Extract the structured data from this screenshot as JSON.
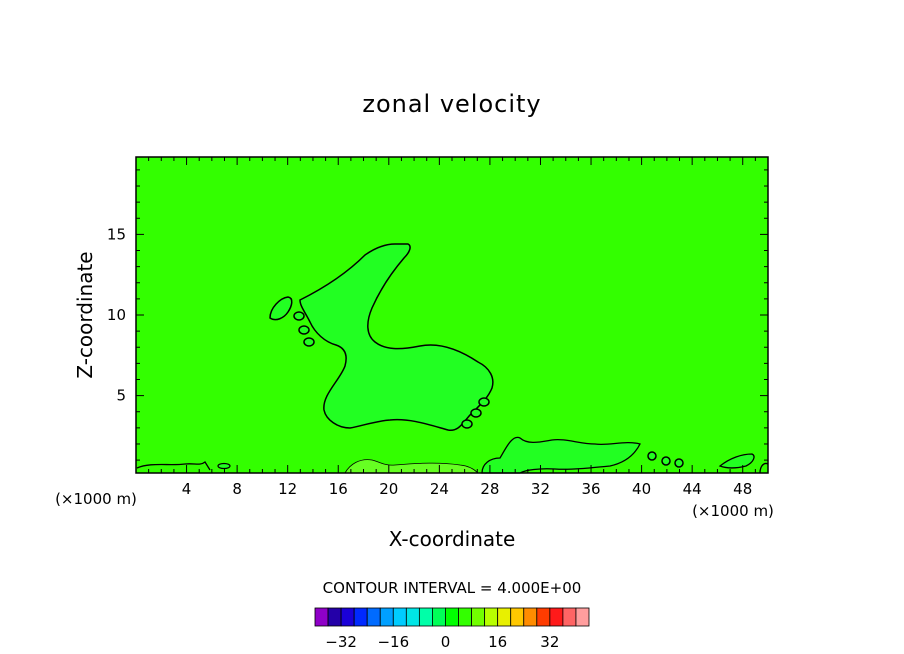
{
  "chart_data": {
    "type": "contour",
    "title": "zonal velocity",
    "xlabel": "X-coordinate",
    "ylabel": "Z-coordinate",
    "x_unit_left": "(×1000 m)",
    "x_unit_right": "(×1000 m)",
    "xlim": [
      0,
      50
    ],
    "ylim": [
      0.2,
      19.8
    ],
    "x_ticks": [
      "4",
      "8",
      "12",
      "16",
      "20",
      "24",
      "28",
      "32",
      "36",
      "40",
      "44",
      "48"
    ],
    "y_ticks": [
      "5",
      "10",
      "15"
    ],
    "background_level": 0,
    "field_color": "#33ff00",
    "contour_interval_text": "CONTOUR INTERVAL = 4.000E+00",
    "colorbar": {
      "levels": [
        -36,
        -32,
        -28,
        -24,
        -20,
        -16,
        -12,
        -8,
        -4,
        0,
        4,
        8,
        12,
        16,
        20,
        24,
        28,
        32,
        36
      ],
      "colors": [
        "#8f00c8",
        "#2400a8",
        "#1a00d8",
        "#0029ff",
        "#006bff",
        "#00a0ff",
        "#00ccff",
        "#00e6e6",
        "#00ffa8",
        "#00ff58",
        "#00ff00",
        "#33ff00",
        "#72ff00",
        "#b8ff00",
        "#e8f000",
        "#ffc800",
        "#ff8c00",
        "#ff3c00",
        "#ff1a1a",
        "#ff6464",
        "#ff9e9e"
      ],
      "tick_labels": [
        "-32",
        "-16",
        "0",
        "16",
        "32"
      ]
    }
  }
}
